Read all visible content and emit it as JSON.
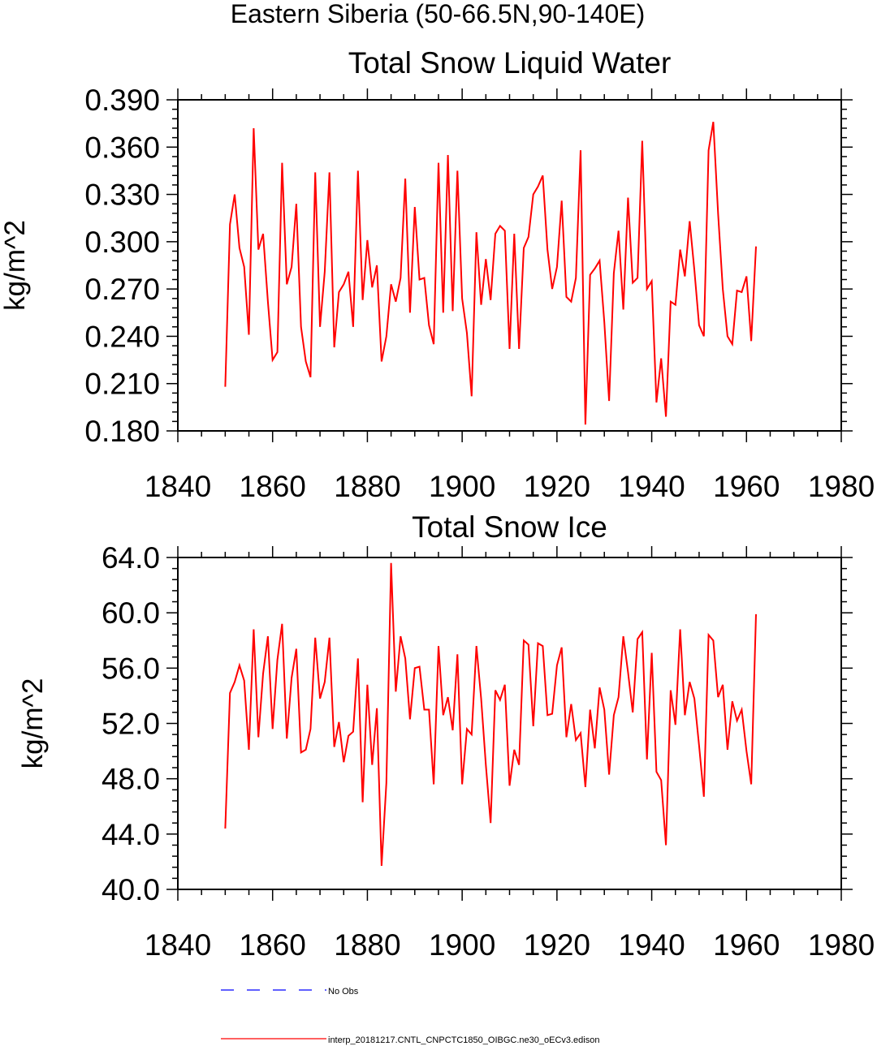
{
  "figure": {
    "title": "Eastern Siberia (50-66.5N,90-140E)"
  },
  "chart_data": [
    {
      "type": "line",
      "title": "Total Snow Liquid Water",
      "xlabel": "",
      "ylabel": "kg/m^2",
      "xlim": [
        1840,
        1980
      ],
      "ylim": [
        0.18,
        0.39
      ],
      "x_ticks": [
        1840,
        1860,
        1880,
        1900,
        1920,
        1940,
        1960,
        1980
      ],
      "x_tick_labels": [
        "1840",
        "1860",
        "1880",
        "1900",
        "1920",
        "1940",
        "1960",
        "1980"
      ],
      "y_ticks": [
        0.18,
        0.21,
        0.24,
        0.27,
        0.3,
        0.33,
        0.36,
        0.39
      ],
      "y_tick_labels": [
        "0.180",
        "0.210",
        "0.240",
        "0.270",
        "0.300",
        "0.330",
        "0.360",
        "0.390"
      ],
      "grid": false,
      "series": [
        {
          "color": "#ff0000",
          "x": [
            1850,
            1851,
            1852,
            1853,
            1854,
            1855,
            1856,
            1857,
            1858,
            1859,
            1860,
            1861,
            1862,
            1863,
            1864,
            1865,
            1866,
            1867,
            1868,
            1869,
            1870,
            1871,
            1872,
            1873,
            1874,
            1875,
            1876,
            1877,
            1878,
            1879,
            1880,
            1881,
            1882,
            1883,
            1884,
            1885,
            1886,
            1887,
            1888,
            1889,
            1890,
            1891,
            1892,
            1893,
            1894,
            1895,
            1896,
            1897,
            1898,
            1899,
            1900,
            1901,
            1902,
            1903,
            1904,
            1905,
            1906,
            1907,
            1908,
            1909,
            1910,
            1911,
            1912,
            1913,
            1914,
            1915,
            1916,
            1917,
            1918,
            1919,
            1920,
            1921,
            1922,
            1923,
            1924,
            1925,
            1926,
            1927,
            1928,
            1929,
            1930,
            1931,
            1932,
            1933,
            1934,
            1935,
            1936,
            1937,
            1938,
            1939,
            1940,
            1941,
            1942,
            1943,
            1944,
            1945,
            1946,
            1947,
            1948,
            1949,
            1950,
            1951,
            1952,
            1953,
            1954,
            1955,
            1956,
            1957,
            1958,
            1959,
            1960,
            1961,
            1962
          ],
          "y": [
            0.208,
            0.311,
            0.33,
            0.296,
            0.284,
            0.241,
            0.372,
            0.295,
            0.305,
            0.262,
            0.225,
            0.23,
            0.35,
            0.273,
            0.284,
            0.324,
            0.246,
            0.224,
            0.214,
            0.344,
            0.246,
            0.281,
            0.344,
            0.233,
            0.268,
            0.273,
            0.281,
            0.246,
            0.345,
            0.263,
            0.301,
            0.271,
            0.285,
            0.224,
            0.24,
            0.273,
            0.262,
            0.277,
            0.34,
            0.255,
            0.322,
            0.276,
            0.277,
            0.247,
            0.235,
            0.35,
            0.255,
            0.355,
            0.256,
            0.345,
            0.264,
            0.242,
            0.202,
            0.306,
            0.26,
            0.289,
            0.263,
            0.305,
            0.31,
            0.307,
            0.232,
            0.305,
            0.232,
            0.296,
            0.303,
            0.33,
            0.335,
            0.342,
            0.295,
            0.27,
            0.284,
            0.326,
            0.265,
            0.262,
            0.277,
            0.358,
            0.184,
            0.279,
            0.283,
            0.288,
            0.249,
            0.199,
            0.28,
            0.307,
            0.257,
            0.328,
            0.274,
            0.277,
            0.364,
            0.27,
            0.275,
            0.198,
            0.226,
            0.189,
            0.262,
            0.26,
            0.295,
            0.278,
            0.313,
            0.282,
            0.247,
            0.24,
            0.358,
            0.376,
            0.318,
            0.27,
            0.24,
            0.235,
            0.269,
            0.268,
            0.278,
            0.237,
            0.297
          ]
        }
      ]
    },
    {
      "type": "line",
      "title": "Total Snow Ice",
      "xlabel": "",
      "ylabel": "kg/m^2",
      "xlim": [
        1840,
        1980
      ],
      "ylim": [
        40,
        64
      ],
      "x_ticks": [
        1840,
        1860,
        1880,
        1900,
        1920,
        1940,
        1960,
        1980
      ],
      "x_tick_labels": [
        "1840",
        "1860",
        "1880",
        "1900",
        "1920",
        "1940",
        "1960",
        "1980"
      ],
      "y_ticks": [
        40,
        44,
        48,
        52,
        56,
        60,
        64
      ],
      "y_tick_labels": [
        "40.0",
        "44.0",
        "48.0",
        "52.0",
        "56.0",
        "60.0",
        "64.0"
      ],
      "grid": false,
      "series": [
        {
          "color": "#ff0000",
          "x": [
            1850,
            1851,
            1852,
            1853,
            1854,
            1855,
            1856,
            1857,
            1858,
            1859,
            1860,
            1861,
            1862,
            1863,
            1864,
            1865,
            1866,
            1867,
            1868,
            1869,
            1870,
            1871,
            1872,
            1873,
            1874,
            1875,
            1876,
            1877,
            1878,
            1879,
            1880,
            1881,
            1882,
            1883,
            1884,
            1885,
            1886,
            1887,
            1888,
            1889,
            1890,
            1891,
            1892,
            1893,
            1894,
            1895,
            1896,
            1897,
            1898,
            1899,
            1900,
            1901,
            1902,
            1903,
            1904,
            1905,
            1906,
            1907,
            1908,
            1909,
            1910,
            1911,
            1912,
            1913,
            1914,
            1915,
            1916,
            1917,
            1918,
            1919,
            1920,
            1921,
            1922,
            1923,
            1924,
            1925,
            1926,
            1927,
            1928,
            1929,
            1930,
            1931,
            1932,
            1933,
            1934,
            1935,
            1936,
            1937,
            1938,
            1939,
            1940,
            1941,
            1942,
            1943,
            1944,
            1945,
            1946,
            1947,
            1948,
            1949,
            1950,
            1951,
            1952,
            1953,
            1954,
            1955,
            1956,
            1957,
            1958,
            1959,
            1960,
            1961,
            1962
          ],
          "y": [
            44.4,
            54.2,
            55.0,
            56.2,
            55.1,
            50.1,
            58.8,
            51.0,
            55.6,
            58.3,
            51.6,
            56.6,
            59.2,
            50.9,
            55.3,
            57.4,
            49.9,
            50.1,
            51.6,
            58.2,
            53.8,
            55.0,
            58.2,
            50.3,
            52.1,
            49.2,
            51.1,
            51.4,
            56.7,
            46.3,
            54.8,
            49.0,
            53.1,
            41.7,
            47.7,
            63.6,
            54.3,
            58.3,
            56.7,
            52.3,
            56.0,
            56.1,
            53.0,
            53.0,
            47.6,
            57.6,
            52.6,
            53.9,
            51.5,
            57.0,
            47.6,
            51.6,
            51.2,
            57.6,
            53.8,
            49.0,
            44.8,
            54.4,
            53.7,
            54.8,
            47.5,
            50.1,
            49.0,
            58.0,
            57.7,
            51.8,
            57.8,
            57.6,
            52.6,
            52.7,
            56.2,
            57.5,
            51.0,
            53.4,
            50.8,
            51.3,
            47.4,
            53.0,
            50.2,
            54.6,
            53.0,
            48.3,
            52.6,
            53.9,
            58.3,
            55.7,
            52.8,
            58.1,
            58.6,
            49.4,
            57.1,
            48.5,
            47.9,
            43.2,
            54.4,
            51.9,
            58.8,
            52.6,
            55.0,
            53.8,
            50.4,
            46.7,
            58.4,
            58.0,
            53.9,
            54.8,
            50.1,
            53.6,
            52.2,
            53.0,
            50.0,
            47.6,
            59.9
          ]
        }
      ]
    }
  ],
  "legend": {
    "entries": [
      {
        "label": "No Obs",
        "color": "#0000ff",
        "style": "dashed"
      },
      {
        "label": "interp_20181217.CNTL_CNPCTC1850_OIBGC.ne30_oECv3.edison",
        "color": "#ff0000",
        "style": "solid"
      }
    ]
  }
}
